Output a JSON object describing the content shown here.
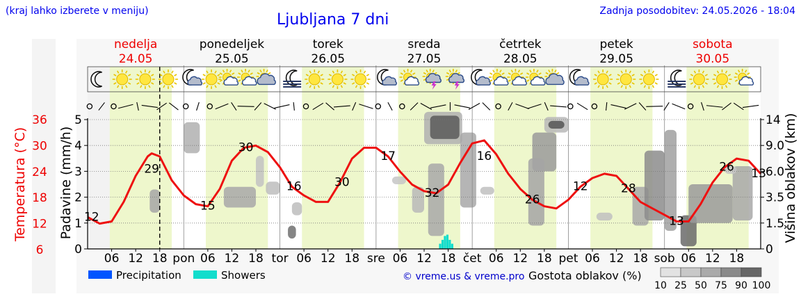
{
  "header": {
    "region_note": "(kraj lahko izberete v meniju)",
    "title": "Ljubljana 7 dni",
    "last_update": "Zadnja posodobitev: 24.05.2026 - 18:04"
  },
  "days": [
    {
      "name": "nedelja",
      "date": "24.05",
      "weekend": true
    },
    {
      "name": "ponedeljek",
      "date": "25.05",
      "weekend": false
    },
    {
      "name": "torek",
      "date": "26.05",
      "weekend": false
    },
    {
      "name": "sreda",
      "date": "27.05",
      "weekend": false
    },
    {
      "name": "četrtek",
      "date": "28.05",
      "weekend": false
    },
    {
      "name": "petek",
      "date": "29.05",
      "weekend": false
    },
    {
      "name": "sobota",
      "date": "30.05",
      "weekend": true
    }
  ],
  "x_axis": {
    "day_abbrevs": [
      "pon",
      "tor",
      "sre",
      "čet",
      "pet",
      "sob"
    ],
    "hour_labels": [
      "06",
      "12",
      "18"
    ]
  },
  "weather_icons": [
    [
      "moon-icon",
      "sun-icon",
      "sun-icon",
      "sun-icon"
    ],
    [
      "moon-cloud-icon",
      "sun-icon",
      "sun-cloud-icon",
      "sun-cloud-icon",
      "cloud-icon"
    ],
    [
      "fog-icon",
      "sun-icon",
      "sun-icon",
      "sun-icon"
    ],
    [
      "moon-cloud-icon",
      "sun-cloud-icon",
      "thunderstorm-icon",
      "thunderstorm-icon"
    ],
    [
      "moon-cloud-icon",
      "sun-cloud-icon",
      "sun-cloud-icon",
      "sun-cloud-icon",
      "cloud-icon"
    ],
    [
      "moon-cloud-icon",
      "sun-icon",
      "sun-icon",
      "sun-icon"
    ],
    [
      "fog-icon",
      "sun-icon",
      "sun-icon",
      "sun-cloud-icon"
    ]
  ],
  "legend": {
    "precipitation": "Precipitation",
    "showers": "Showers",
    "credit": "© vreme.us & vreme.pro",
    "cloud_density_title": "Gostota oblakov (%)",
    "cloud_density_labels": [
      "10",
      "25",
      "50",
      "75",
      "90",
      "100"
    ],
    "colors": {
      "precipitation": "#0055ff",
      "showers": "#11ddcc"
    }
  },
  "chart_data": {
    "type": "line",
    "x_unit": "hours from 2026-05-24 00:00",
    "x_range": [
      0,
      168
    ],
    "left_temp_axis": {
      "label": "Temperatura (°C)",
      "ticks": [
        "6",
        "12",
        "18",
        "24",
        "30",
        "36"
      ]
    },
    "left_precip_axis": {
      "label": "Padavine (mm/h)",
      "ticks": [
        "0",
        "1",
        "2",
        "3",
        "4",
        "5"
      ],
      "ylim": [
        0,
        5
      ]
    },
    "right_axis": {
      "label": "Višina oblakov (km)",
      "ticks": [
        "0",
        "1.5",
        "3.5",
        "6.0",
        "9.0",
        "14"
      ]
    },
    "temperature": {
      "color": "#ee1111",
      "x": [
        0,
        3,
        6,
        9,
        12,
        15,
        16,
        18,
        21,
        24,
        27,
        30,
        33,
        36,
        39,
        42,
        45,
        48,
        51,
        54,
        57,
        60,
        63,
        66,
        69,
        72,
        75,
        78,
        81,
        84,
        87,
        90,
        93,
        96,
        99,
        102,
        105,
        108,
        111,
        114,
        117,
        120,
        123,
        126,
        129,
        132,
        135,
        138,
        141,
        144,
        147,
        150,
        153,
        156,
        159,
        162,
        165,
        168
      ],
      "y": [
        13.5,
        12,
        12.5,
        17,
        23,
        27.5,
        28.2,
        27.5,
        22,
        18.5,
        16.5,
        16,
        20,
        26.5,
        29.5,
        30,
        28.5,
        25,
        20.5,
        18.5,
        17,
        17,
        21.5,
        27,
        29.5,
        29.5,
        27.5,
        24,
        21,
        19.5,
        19,
        21,
        26,
        30.5,
        31.2,
        28,
        23.5,
        20,
        17.5,
        16,
        15.5,
        17.5,
        20.5,
        22.5,
        23.5,
        23,
        20,
        17,
        15.5,
        14,
        12.5,
        12.5,
        16.5,
        21.5,
        25,
        27,
        26.5,
        23.5
      ],
      "labels": [
        {
          "x": 1,
          "value": "12"
        },
        {
          "x": 16,
          "value": "29"
        },
        {
          "x": 30,
          "value": "15"
        },
        {
          "x": 39.5,
          "value": "30"
        },
        {
          "x": 51.5,
          "value": "16"
        },
        {
          "x": 63.5,
          "value": "30"
        },
        {
          "x": 75,
          "value": "17"
        },
        {
          "x": 86,
          "value": "32"
        },
        {
          "x": 99,
          "value": "16"
        },
        {
          "x": 111,
          "value": "26"
        },
        {
          "x": 123,
          "value": "12"
        },
        {
          "x": 135,
          "value": "28"
        },
        {
          "x": 147,
          "value": "13"
        },
        {
          "x": 159.5,
          "value": "26"
        },
        {
          "x": 167.5,
          "value": "13"
        }
      ]
    },
    "showers_mm_h": {
      "x": [
        88,
        88.6,
        89.2,
        89.8,
        90.4,
        91
      ],
      "y": [
        0.2,
        0.35,
        0.5,
        0.55,
        0.35,
        0.2
      ]
    }
  }
}
